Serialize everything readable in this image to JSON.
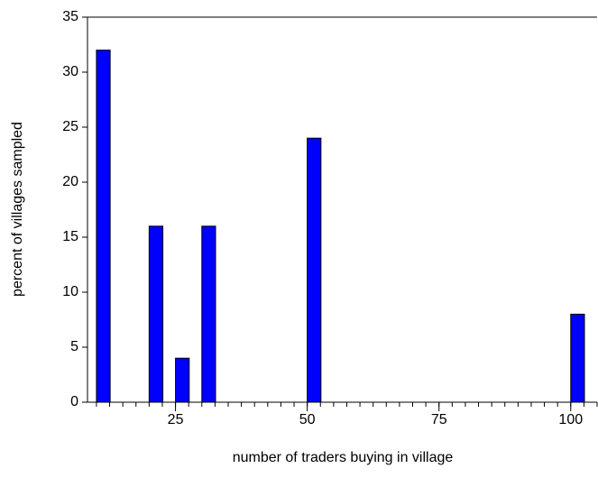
{
  "chart_data": {
    "type": "bar",
    "x_label": "number of traders buying in village",
    "y_label": "percent of villages sampled",
    "x": [
      10,
      20,
      25,
      30,
      50,
      100
    ],
    "values": [
      32,
      16,
      4,
      16,
      24,
      8
    ],
    "color": "#0000ff",
    "xlim": [
      8.3,
      105
    ],
    "xticks": [
      25,
      50,
      75,
      100
    ],
    "ylim": [
      0,
      35
    ],
    "yticks": [
      0,
      5,
      10,
      15,
      20,
      25,
      30,
      35
    ]
  }
}
